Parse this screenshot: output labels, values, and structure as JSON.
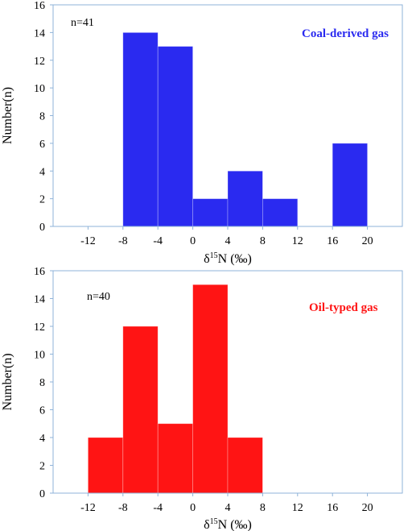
{
  "chart_data": [
    {
      "type": "bar",
      "panel": "top",
      "bins": [
        [
          -8,
          -4
        ],
        [
          -4,
          0
        ],
        [
          0,
          4
        ],
        [
          4,
          8
        ],
        [
          8,
          12
        ],
        [
          16,
          20
        ]
      ],
      "values": [
        14,
        13,
        2,
        4,
        2,
        6
      ],
      "xlim": [
        -16,
        24
      ],
      "ylim": [
        0,
        16
      ],
      "xticks": [
        -12,
        -8,
        -4,
        0,
        4,
        8,
        12,
        16,
        20
      ],
      "yticks": [
        0,
        2,
        4,
        6,
        8,
        10,
        12,
        14,
        16
      ],
      "xlabel_main": "δ",
      "xlabel_sup": "15",
      "xlabel_rest": "N (‰)",
      "ylabel": "Number(n)",
      "count_label": "n=41",
      "series_label": "Coal-derived gas",
      "color": "#2a2af0",
      "grid": false
    },
    {
      "type": "bar",
      "panel": "bottom",
      "bins": [
        [
          -12,
          -8
        ],
        [
          -8,
          -4
        ],
        [
          -4,
          0
        ],
        [
          0,
          4
        ],
        [
          4,
          8
        ]
      ],
      "values": [
        4,
        12,
        5,
        15,
        4
      ],
      "xlim": [
        -16,
        24
      ],
      "ylim": [
        0,
        16
      ],
      "xticks": [
        -12,
        -8,
        -4,
        0,
        4,
        8,
        12,
        16,
        20
      ],
      "yticks": [
        0,
        2,
        4,
        6,
        8,
        10,
        12,
        14,
        16
      ],
      "xlabel_main": "δ",
      "xlabel_sup": "15",
      "xlabel_rest": "N (‰)",
      "ylabel": "Number(n)",
      "count_label": "n=40",
      "series_label": "Oil-typed gas",
      "color": "#ff1414",
      "grid": false
    }
  ]
}
